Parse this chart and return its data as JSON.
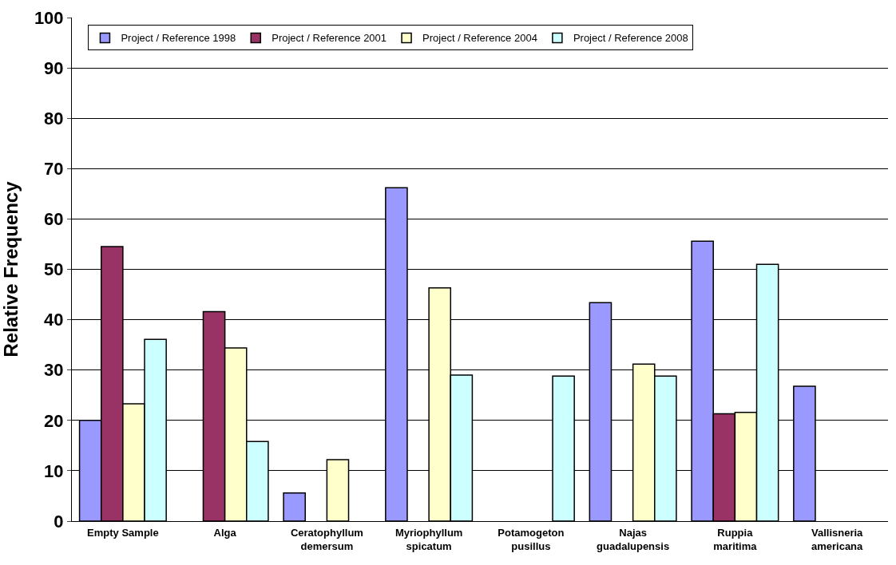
{
  "chart_data": {
    "type": "bar",
    "ylabel": "Relative Frequency",
    "categories": [
      "Empty Sample",
      "Alga",
      "Ceratophyllum\ndemersum",
      "Myriophyllum\nspicatum",
      "Potamogeton\npusillus",
      "Najas\nguadalupensis",
      "Ruppia\nmaritima",
      "Vallisneria\namericana"
    ],
    "series": [
      {
        "name": "Project / Reference 1998",
        "color": "#9999ff",
        "values": [
          20,
          null,
          5.6,
          66.2,
          null,
          43.4,
          55.6,
          26.8
        ]
      },
      {
        "name": "Project / Reference 2001",
        "color": "#993366",
        "values": [
          54.5,
          41.6,
          null,
          null,
          null,
          null,
          21.3,
          null
        ]
      },
      {
        "name": "Project / Reference 2004",
        "color": "#ffffcc",
        "values": [
          23.3,
          34.4,
          12.2,
          46.3,
          null,
          31.2,
          21.6,
          null
        ]
      },
      {
        "name": "Project / Reference 2008",
        "color": "#ccffff",
        "values": [
          36.1,
          15.8,
          null,
          29,
          28.8,
          28.8,
          51,
          null
        ]
      }
    ],
    "ylim": [
      0,
      100
    ],
    "yticks": [
      0,
      10,
      20,
      30,
      40,
      50,
      60,
      70,
      80,
      90,
      100
    ],
    "grid": "y",
    "legend": "top"
  }
}
